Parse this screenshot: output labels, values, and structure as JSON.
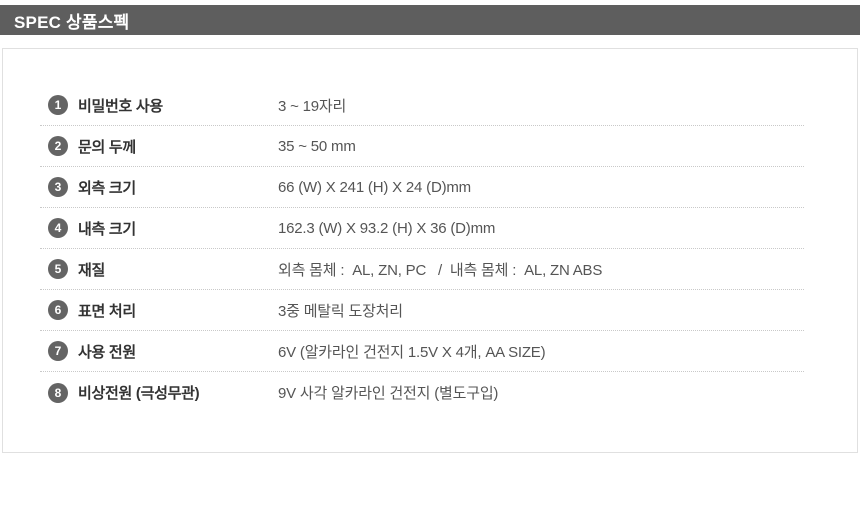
{
  "header": {
    "title": "SPEC 상품스펙"
  },
  "spec_table": {
    "rows": [
      {
        "num": "1",
        "label": "비밀번호 사용",
        "value": "3 ~ 19자리"
      },
      {
        "num": "2",
        "label": "문의 두께",
        "value": "35 ~ 50 mm"
      },
      {
        "num": "3",
        "label": "외측 크기",
        "value": "66 (W) X 241 (H) X 24 (D)mm"
      },
      {
        "num": "4",
        "label": "내측 크기",
        "value": "162.3 (W) X 93.2 (H) X 36 (D)mm"
      },
      {
        "num": "5",
        "label": "재질",
        "value": "외측 몸체 :  AL, ZN, PC   /  내측 몸체 :  AL, ZN ABS"
      },
      {
        "num": "6",
        "label": "표면 처리",
        "value": "3중 메탈릭 도장처리"
      },
      {
        "num": "7",
        "label": "사용 전원",
        "value": "6V (알카라인 건전지 1.5V X 4개, AA SIZE)"
      },
      {
        "num": "8",
        "label": "비상전원 (극성무관)",
        "value": "9V 사각 알카라인 건전지 (별도구입)"
      }
    ]
  },
  "colors": {
    "header_bg": "#5e5e5e",
    "badge_bg": "#646464",
    "label_text": "#333333",
    "value_text": "#555555",
    "divider": "#c9c9c9",
    "box_border": "#e0e0e0"
  }
}
